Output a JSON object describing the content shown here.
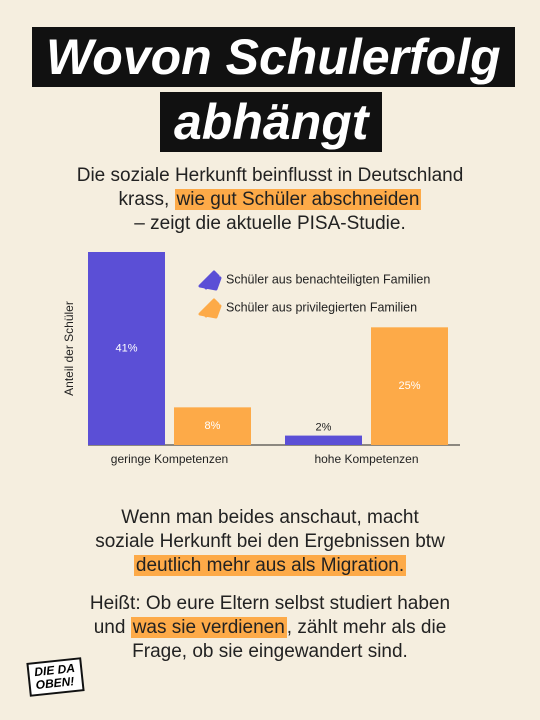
{
  "chart_data": {
    "type": "bar",
    "title": [
      "Wovon Schulerfolg",
      "abhängt"
    ],
    "subtitle": [
      [
        {
          "text": "Die soziale Herkunft beinflusst in Deutschland"
        }
      ],
      [
        {
          "text": "krass, "
        },
        {
          "text": "wie gut Schüler abschneiden",
          "highlight": true
        }
      ],
      [
        {
          "text": "– zeigt die aktuelle PISA-Studie."
        }
      ]
    ],
    "ylabel": "Anteil der Schüler",
    "categories": [
      "geringe Kompetenzen",
      "hohe Kompetenzen"
    ],
    "series": [
      {
        "name": "Schüler aus benachteiligten Familien",
        "color": "#5b4fd6",
        "values": [
          41,
          2
        ],
        "value_labels": [
          "41%",
          "2%"
        ]
      },
      {
        "name": "Schüler aus privilegierten Familien",
        "color": "#fdaa48",
        "values": [
          8,
          25
        ],
        "value_labels": [
          "8%",
          "25%"
        ]
      }
    ],
    "ylim": [
      0,
      41
    ],
    "highlight_color": "#fdaa48",
    "annotations": [
      [
        [
          {
            "text": "Wenn man beides anschaut, macht"
          }
        ],
        [
          {
            "text": "soziale Herkunft bei den Ergebnissen btw"
          }
        ],
        [
          {
            "text": "deutlich mehr aus als Migration.",
            "highlight": true
          }
        ]
      ],
      [
        [
          {
            "text": "Heißt: Ob eure Eltern selbst studiert haben"
          }
        ],
        [
          {
            "text": "und "
          },
          {
            "text": "was sie verdienen",
            "highlight": true
          },
          {
            "text": ", zählt mehr als die"
          }
        ],
        [
          {
            "text": "Frage, ob sie eingewandert sind."
          }
        ]
      ]
    ],
    "logo": [
      "DIE DA",
      "OBEN!"
    ]
  }
}
